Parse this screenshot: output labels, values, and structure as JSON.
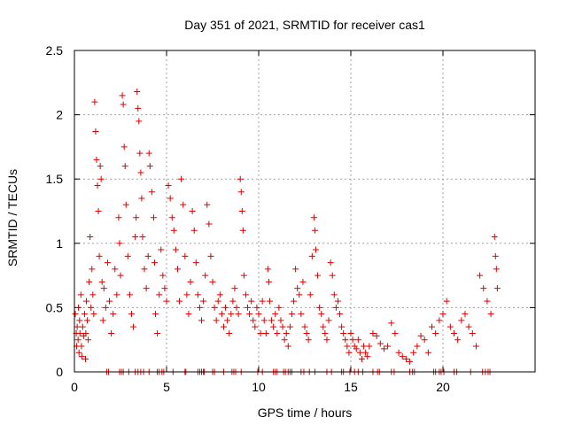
{
  "chart_data": {
    "type": "scatter",
    "title": "Day 351 of 2021, SRMTID for receiver cas1",
    "xlabel": "GPS time / hours",
    "ylabel": "SRMTID / TECUs",
    "xlim": [
      0,
      25
    ],
    "ylim": [
      0,
      2.5
    ],
    "xticks": [
      0,
      5,
      10,
      15,
      20
    ],
    "yticks": [
      0,
      0.5,
      1,
      1.5,
      2,
      2.5
    ],
    "xtick_labels": [
      "0",
      "5",
      "10",
      "15",
      "20"
    ],
    "ytick_labels": [
      "0",
      "0.5",
      "1",
      "1.5",
      "2",
      "2.5"
    ],
    "grid": true,
    "marker": "+",
    "series": [
      {
        "name": "cas1",
        "color": "#e00000",
        "points": [
          [
            0.05,
            0.45
          ],
          [
            0.1,
            0.3
          ],
          [
            0.12,
            0.2
          ],
          [
            0.15,
            0.35
          ],
          [
            0.2,
            0.25
          ],
          [
            0.22,
            0.5
          ],
          [
            0.25,
            0.15
          ],
          [
            0.28,
            0.4
          ],
          [
            0.3,
            0.3
          ],
          [
            0.35,
            0.6
          ],
          [
            0.38,
            0.2
          ],
          [
            0.4,
            0.12
          ],
          [
            0.45,
            0.35
          ],
          [
            0.5,
            0.28
          ],
          [
            0.55,
            0.45
          ],
          [
            0.6,
            0.1
          ],
          [
            0.62,
            0.3
          ],
          [
            0.65,
            0.55
          ],
          [
            0.7,
            0.4
          ],
          [
            0.75,
            0.25
          ],
          [
            0.8,
            0.7
          ],
          [
            0.85,
            1.05
          ],
          [
            0.9,
            0.5
          ],
          [
            0.95,
            0.8
          ],
          [
            1.0,
            0.6
          ],
          [
            1.05,
            0.45
          ],
          [
            1.1,
            2.1
          ],
          [
            1.15,
            1.87
          ],
          [
            1.2,
            1.65
          ],
          [
            1.25,
            1.45
          ],
          [
            1.3,
            1.25
          ],
          [
            1.35,
            0.9
          ],
          [
            1.4,
            1.6
          ],
          [
            1.45,
            1.5
          ],
          [
            1.5,
            0.7
          ],
          [
            1.55,
            0.4
          ],
          [
            1.6,
            0.65
          ],
          [
            1.7,
            0.5
          ],
          [
            1.8,
            0.85
          ],
          [
            1.9,
            0.55
          ],
          [
            2.0,
            0.3
          ],
          [
            2.1,
            0.45
          ],
          [
            2.2,
            0.8
          ],
          [
            2.3,
            0.6
          ],
          [
            2.4,
            1.2
          ],
          [
            2.45,
            1.0
          ],
          [
            2.5,
            0.75
          ],
          [
            2.6,
            2.15
          ],
          [
            2.65,
            2.08
          ],
          [
            2.7,
            1.75
          ],
          [
            2.75,
            1.6
          ],
          [
            2.8,
            1.3
          ],
          [
            2.9,
            0.9
          ],
          [
            3.0,
            0.6
          ],
          [
            3.1,
            0.45
          ],
          [
            3.2,
            0.35
          ],
          [
            3.3,
            1.05
          ],
          [
            3.35,
            1.2
          ],
          [
            3.4,
            2.18
          ],
          [
            3.45,
            2.05
          ],
          [
            3.5,
            1.95
          ],
          [
            3.55,
            1.7
          ],
          [
            3.6,
            1.55
          ],
          [
            3.65,
            1.35
          ],
          [
            3.7,
            1.05
          ],
          [
            3.8,
            0.8
          ],
          [
            3.9,
            0.65
          ],
          [
            4.0,
            0.9
          ],
          [
            4.05,
            1.7
          ],
          [
            4.1,
            1.6
          ],
          [
            4.2,
            1.4
          ],
          [
            4.3,
            1.2
          ],
          [
            4.35,
            0.85
          ],
          [
            4.4,
            0.45
          ],
          [
            4.5,
            0.3
          ],
          [
            4.6,
            0.6
          ],
          [
            4.7,
            0.95
          ],
          [
            4.8,
            0.75
          ],
          [
            4.9,
            0.65
          ],
          [
            5.0,
            0.55
          ],
          [
            5.1,
            1.45
          ],
          [
            5.2,
            1.35
          ],
          [
            5.3,
            1.2
          ],
          [
            5.4,
            1.1
          ],
          [
            5.5,
            0.95
          ],
          [
            5.6,
            0.8
          ],
          [
            5.7,
            0.55
          ],
          [
            5.8,
            1.5
          ],
          [
            5.9,
            1.3
          ],
          [
            6.0,
            0.9
          ],
          [
            6.1,
            0.6
          ],
          [
            6.2,
            0.45
          ],
          [
            6.3,
            0.7
          ],
          [
            6.4,
            1.25
          ],
          [
            6.5,
            1.1
          ],
          [
            6.6,
            0.85
          ],
          [
            6.7,
            0.6
          ],
          [
            6.8,
            0.5
          ],
          [
            6.9,
            0.4
          ],
          [
            7.0,
            0.55
          ],
          [
            7.1,
            0.75
          ],
          [
            7.2,
            1.3
          ],
          [
            7.3,
            1.15
          ],
          [
            7.4,
            0.9
          ],
          [
            7.5,
            0.7
          ],
          [
            7.6,
            0.5
          ],
          [
            7.7,
            0.4
          ],
          [
            7.8,
            0.55
          ],
          [
            7.9,
            0.6
          ],
          [
            8.0,
            0.45
          ],
          [
            8.1,
            0.35
          ],
          [
            8.2,
            0.5
          ],
          [
            8.3,
            0.4
          ],
          [
            8.4,
            0.3
          ],
          [
            8.5,
            0.45
          ],
          [
            8.6,
            0.55
          ],
          [
            8.7,
            0.65
          ],
          [
            8.8,
            0.5
          ],
          [
            8.9,
            0.45
          ],
          [
            9.0,
            1.5
          ],
          [
            9.05,
            1.4
          ],
          [
            9.1,
            1.25
          ],
          [
            9.15,
            1.1
          ],
          [
            9.2,
            0.75
          ],
          [
            9.3,
            0.6
          ],
          [
            9.4,
            0.5
          ],
          [
            9.5,
            0.45
          ],
          [
            9.6,
            0.55
          ],
          [
            9.7,
            0.4
          ],
          [
            9.8,
            0.35
          ],
          [
            9.9,
            0.5
          ],
          [
            10.0,
            0.45
          ],
          [
            10.1,
            0.3
          ],
          [
            10.2,
            0.55
          ],
          [
            10.3,
            0.4
          ],
          [
            10.4,
            0.3
          ],
          [
            10.5,
            0.8
          ],
          [
            10.55,
            0.7
          ],
          [
            10.6,
            0.55
          ],
          [
            10.7,
            0.4
          ],
          [
            10.8,
            0.35
          ],
          [
            10.9,
            0.45
          ],
          [
            11.0,
            0.3
          ],
          [
            11.1,
            0.5
          ],
          [
            11.2,
            0.4
          ],
          [
            11.3,
            0.35
          ],
          [
            11.4,
            0.25
          ],
          [
            11.5,
            0.3
          ],
          [
            11.6,
            0.2
          ],
          [
            11.7,
            0.35
          ],
          [
            11.8,
            0.45
          ],
          [
            11.9,
            0.55
          ],
          [
            12.0,
            0.8
          ],
          [
            12.1,
            0.65
          ],
          [
            12.2,
            0.6
          ],
          [
            12.3,
            0.45
          ],
          [
            12.4,
            0.7
          ],
          [
            12.5,
            0.35
          ],
          [
            12.6,
            0.3
          ],
          [
            12.7,
            0.25
          ],
          [
            12.8,
            0.6
          ],
          [
            12.9,
            0.9
          ],
          [
            13.0,
            1.2
          ],
          [
            13.05,
            1.1
          ],
          [
            13.1,
            0.95
          ],
          [
            13.2,
            0.75
          ],
          [
            13.3,
            0.5
          ],
          [
            13.4,
            0.45
          ],
          [
            13.5,
            0.35
          ],
          [
            13.6,
            0.3
          ],
          [
            13.7,
            0.25
          ],
          [
            13.8,
            0.4
          ],
          [
            13.9,
            0.85
          ],
          [
            14.0,
            0.75
          ],
          [
            14.1,
            0.6
          ],
          [
            14.2,
            0.5
          ],
          [
            14.3,
            0.55
          ],
          [
            14.4,
            0.45
          ],
          [
            14.5,
            0.35
          ],
          [
            14.6,
            0.3
          ],
          [
            14.7,
            0.25
          ],
          [
            14.8,
            0.2
          ],
          [
            14.9,
            0.15
          ],
          [
            15.0,
            0.3
          ],
          [
            15.1,
            0.25
          ],
          [
            15.2,
            0.2
          ],
          [
            15.3,
            0.18
          ],
          [
            15.4,
            0.25
          ],
          [
            15.5,
            0.15
          ],
          [
            15.6,
            0.1
          ],
          [
            15.7,
            0.2
          ],
          [
            15.8,
            0.15
          ],
          [
            15.9,
            0.12
          ],
          [
            16.0,
            0.2
          ],
          [
            16.2,
            0.3
          ],
          [
            16.4,
            0.28
          ],
          [
            16.6,
            0.22
          ],
          [
            16.8,
            0.18
          ],
          [
            17.0,
            0.2
          ],
          [
            17.2,
            0.38
          ],
          [
            17.4,
            0.3
          ],
          [
            17.6,
            0.15
          ],
          [
            17.8,
            0.12
          ],
          [
            18.0,
            0.1
          ],
          [
            18.2,
            0.08
          ],
          [
            18.4,
            0.15
          ],
          [
            18.6,
            0.2
          ],
          [
            18.8,
            0.28
          ],
          [
            19.0,
            0.25
          ],
          [
            19.2,
            0.15
          ],
          [
            19.4,
            0.35
          ],
          [
            19.6,
            0.3
          ],
          [
            19.8,
            0.4
          ],
          [
            20.0,
            0.45
          ],
          [
            20.2,
            0.55
          ],
          [
            20.4,
            0.35
          ],
          [
            20.6,
            0.3
          ],
          [
            20.8,
            0.25
          ],
          [
            21.0,
            0.4
          ],
          [
            21.2,
            0.45
          ],
          [
            21.4,
            0.35
          ],
          [
            21.6,
            0.3
          ],
          [
            21.8,
            0.2
          ],
          [
            22.0,
            0.75
          ],
          [
            22.2,
            0.65
          ],
          [
            22.4,
            0.55
          ],
          [
            22.6,
            0.45
          ],
          [
            22.8,
            1.05
          ],
          [
            22.85,
            0.9
          ],
          [
            22.9,
            0.8
          ],
          [
            22.95,
            0.65
          ]
        ],
        "zero_points": [
          1.75,
          1.85,
          2.45,
          2.55,
          2.65,
          2.95,
          3.3,
          3.45,
          3.6,
          3.75,
          4.05,
          4.5,
          4.6,
          4.75,
          4.85,
          5.35,
          6.0,
          6.05,
          6.7,
          6.8,
          6.9,
          7.0,
          7.05,
          7.5,
          7.6,
          8.1,
          8.55,
          8.65,
          8.75,
          9.05,
          9.95,
          10.2,
          10.8,
          10.9,
          11.0,
          11.35,
          11.45,
          11.6,
          11.7,
          11.8,
          12.3,
          12.45,
          12.75,
          13.05,
          13.7,
          13.95,
          14.5,
          14.6,
          14.95,
          15.2,
          15.4,
          15.65,
          16.2,
          16.45,
          16.55,
          17.2,
          17.35,
          18.2,
          18.35,
          18.45,
          19.5,
          19.6,
          19.8,
          19.9,
          20.05,
          20.6,
          20.75,
          21.5,
          22.15,
          22.3,
          22.45,
          22.55
        ]
      }
    ]
  }
}
